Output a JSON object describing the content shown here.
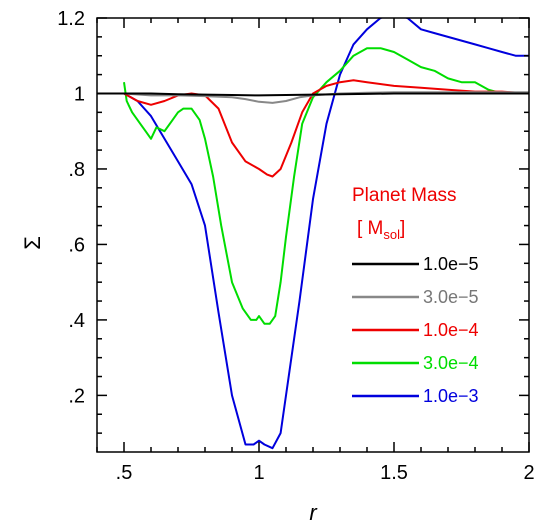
{
  "chart_data": {
    "type": "line",
    "xlabel": "r",
    "ylabel": "Σ",
    "xlim": [
      0.4,
      2.0
    ],
    "ylim": [
      0.05,
      1.2
    ],
    "x_ticks": [
      ".5",
      "1",
      "1.5",
      "2"
    ],
    "x_tick_values": [
      0.5,
      1.0,
      1.5,
      2.0
    ],
    "y_ticks": [
      ".2",
      ".4",
      ".6",
      ".8",
      "1",
      "1.2"
    ],
    "y_tick_values": [
      0.2,
      0.4,
      0.6,
      0.8,
      1.0,
      1.2
    ],
    "grid": false,
    "legend_title_1": "Planet Mass",
    "legend_title_2_open": "[ M",
    "legend_title_2_sub": "sol",
    "legend_title_2_close": "]",
    "legend_placement": "right",
    "series": [
      {
        "name": "1.0e−5",
        "color": "#000000",
        "x": [
          0.4,
          0.5,
          0.6,
          0.7,
          0.8,
          0.9,
          1.0,
          1.1,
          1.2,
          1.3,
          1.4,
          1.5,
          1.6,
          1.7,
          1.8,
          1.9,
          2.0
        ],
        "y": [
          1.0,
          1.0,
          1.0,
          0.998,
          0.997,
          0.996,
          0.995,
          0.996,
          0.997,
          0.998,
          0.999,
          1.0,
          1.0,
          1.0,
          1.0,
          1.0,
          1.0
        ]
      },
      {
        "name": "3.0e−5",
        "color": "#888888",
        "x": [
          0.4,
          0.5,
          0.6,
          0.7,
          0.8,
          0.9,
          0.95,
          1.0,
          1.05,
          1.1,
          1.15,
          1.2,
          1.3,
          1.4,
          1.5,
          1.6,
          1.7,
          1.8,
          1.9,
          2.0
        ],
        "y": [
          1.0,
          1.0,
          0.995,
          0.995,
          0.993,
          0.99,
          0.985,
          0.978,
          0.975,
          0.98,
          0.99,
          0.995,
          1.0,
          1.002,
          1.003,
          1.003,
          1.003,
          1.003,
          1.003,
          1.003
        ]
      },
      {
        "name": "1.0e−4",
        "color": "#ee0000",
        "x": [
          0.4,
          0.5,
          0.55,
          0.6,
          0.65,
          0.7,
          0.75,
          0.8,
          0.85,
          0.9,
          0.95,
          1.0,
          1.03,
          1.05,
          1.08,
          1.12,
          1.16,
          1.2,
          1.25,
          1.3,
          1.35,
          1.4,
          1.5,
          1.6,
          1.7,
          1.8,
          1.9,
          2.0
        ],
        "y": [
          1.0,
          1.0,
          0.98,
          0.97,
          0.98,
          0.995,
          1.0,
          0.995,
          0.96,
          0.87,
          0.82,
          0.8,
          0.785,
          0.78,
          0.8,
          0.87,
          0.95,
          1.0,
          1.02,
          1.03,
          1.035,
          1.03,
          1.02,
          1.015,
          1.01,
          1.005,
          1.005,
          1.0
        ]
      },
      {
        "name": "3.0e−4",
        "color": "#00dd00",
        "x": [
          0.5,
          0.51,
          0.53,
          0.56,
          0.58,
          0.6,
          0.62,
          0.65,
          0.68,
          0.7,
          0.72,
          0.75,
          0.78,
          0.8,
          0.83,
          0.86,
          0.9,
          0.94,
          0.97,
          0.99,
          1.0,
          1.02,
          1.04,
          1.06,
          1.08,
          1.1,
          1.13,
          1.16,
          1.2,
          1.25,
          1.3,
          1.35,
          1.4,
          1.45,
          1.5,
          1.55,
          1.6,
          1.65,
          1.7,
          1.75,
          1.8,
          1.85,
          1.9,
          1.95,
          2.0
        ],
        "y": [
          1.03,
          0.98,
          0.95,
          0.92,
          0.9,
          0.88,
          0.91,
          0.9,
          0.93,
          0.95,
          0.96,
          0.96,
          0.93,
          0.88,
          0.78,
          0.65,
          0.5,
          0.43,
          0.4,
          0.4,
          0.41,
          0.39,
          0.39,
          0.41,
          0.5,
          0.62,
          0.78,
          0.92,
          0.99,
          1.03,
          1.06,
          1.1,
          1.12,
          1.12,
          1.11,
          1.09,
          1.07,
          1.06,
          1.04,
          1.03,
          1.03,
          1.01,
          1.0,
          1.0,
          1.0
        ]
      },
      {
        "name": "1.0e−3",
        "color": "#0000dd",
        "x": [
          0.4,
          0.45,
          0.5,
          0.55,
          0.6,
          0.65,
          0.7,
          0.75,
          0.8,
          0.85,
          0.9,
          0.95,
          0.98,
          1.0,
          1.02,
          1.05,
          1.08,
          1.1,
          1.15,
          1.2,
          1.25,
          1.3,
          1.35,
          1.4,
          1.45,
          1.5,
          1.55,
          1.6,
          1.65,
          1.7,
          1.75,
          1.8,
          1.85,
          1.9,
          1.95,
          2.0
        ],
        "y": [
          1.0,
          1.0,
          1.0,
          0.98,
          0.94,
          0.88,
          0.82,
          0.76,
          0.65,
          0.42,
          0.2,
          0.07,
          0.07,
          0.08,
          0.07,
          0.06,
          0.1,
          0.2,
          0.45,
          0.72,
          0.92,
          1.05,
          1.13,
          1.17,
          1.2,
          1.21,
          1.2,
          1.17,
          1.16,
          1.15,
          1.14,
          1.13,
          1.12,
          1.11,
          1.1,
          1.1
        ]
      }
    ]
  }
}
